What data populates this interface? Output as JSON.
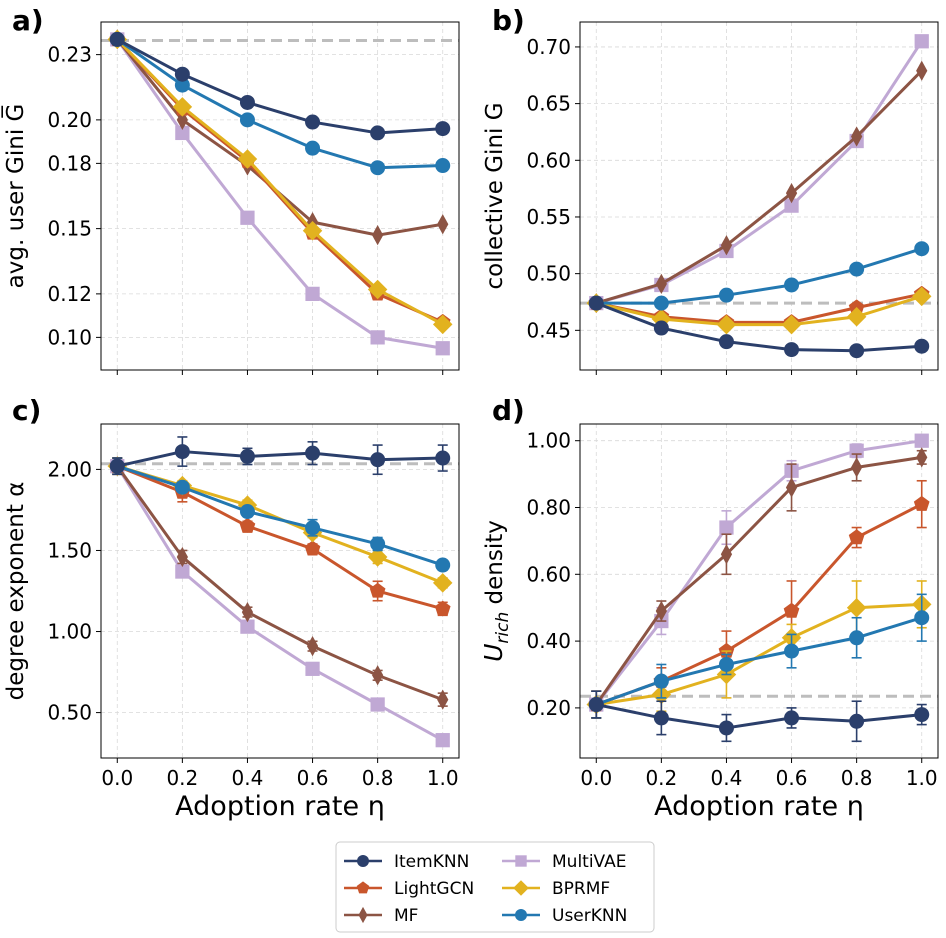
{
  "chart_data": [
    {
      "type": "line",
      "panel_label": "a)",
      "ylabel": "avg. user Gini G̅",
      "xlabel": "",
      "x": [
        0.0,
        0.2,
        0.4,
        0.6,
        0.8,
        1.0
      ],
      "xticks": [
        "",
        "",
        "",
        "",
        "",
        ""
      ],
      "ylim": [
        0.085,
        0.245
      ],
      "yticks": [
        0.1,
        0.12,
        0.15,
        0.18,
        0.2,
        0.23
      ],
      "ytick_labels": [
        "0.10",
        "0.12",
        "0.15",
        "0.18",
        "0.20",
        "0.23"
      ],
      "reference_line": 0.2365,
      "series": [
        {
          "name": "ItemKNN",
          "values": [
            0.237,
            0.221,
            0.208,
            0.199,
            0.194,
            0.196
          ]
        },
        {
          "name": "LightGCN",
          "values": [
            0.237,
            0.205,
            0.181,
            0.148,
            0.12,
            0.107
          ]
        },
        {
          "name": "MF",
          "values": [
            0.237,
            0.2,
            0.179,
            0.153,
            0.147,
            0.152
          ]
        },
        {
          "name": "MultiVAE",
          "values": [
            0.237,
            0.194,
            0.155,
            0.12,
            0.1,
            0.095
          ]
        },
        {
          "name": "BPRMF",
          "values": [
            0.237,
            0.206,
            0.182,
            0.149,
            0.122,
            0.106
          ]
        },
        {
          "name": "UserKNN",
          "values": [
            0.237,
            0.216,
            0.2,
            0.187,
            0.178,
            0.179
          ]
        }
      ]
    },
    {
      "type": "line",
      "panel_label": "b)",
      "ylabel": "collective Gini G",
      "xlabel": "",
      "x": [
        0.0,
        0.2,
        0.4,
        0.6,
        0.8,
        1.0
      ],
      "xticks": [
        "",
        "",
        "",
        "",
        "",
        ""
      ],
      "ylim": [
        0.415,
        0.722
      ],
      "yticks": [
        0.45,
        0.5,
        0.55,
        0.6,
        0.65,
        0.7
      ],
      "ytick_labels": [
        "0.45",
        "0.50",
        "0.55",
        "0.60",
        "0.65",
        "0.70"
      ],
      "reference_line": 0.474,
      "series": [
        {
          "name": "ItemKNN",
          "values": [
            0.474,
            0.452,
            0.44,
            0.433,
            0.432,
            0.436
          ]
        },
        {
          "name": "LightGCN",
          "values": [
            0.474,
            0.462,
            0.457,
            0.457,
            0.47,
            0.482
          ]
        },
        {
          "name": "MF",
          "values": [
            0.474,
            0.491,
            0.525,
            0.571,
            0.621,
            0.679
          ]
        },
        {
          "name": "MultiVAE",
          "values": [
            0.474,
            0.49,
            0.52,
            0.56,
            0.617,
            0.705
          ]
        },
        {
          "name": "BPRMF",
          "values": [
            0.474,
            0.46,
            0.455,
            0.455,
            0.462,
            0.48
          ]
        },
        {
          "name": "UserKNN",
          "values": [
            0.474,
            0.474,
            0.481,
            0.49,
            0.504,
            0.522
          ]
        }
      ]
    },
    {
      "type": "line",
      "panel_label": "c)",
      "ylabel": "degree exponent α",
      "xlabel": "Adoption rate η",
      "x": [
        0.0,
        0.2,
        0.4,
        0.6,
        0.8,
        1.0
      ],
      "xticks": [
        "0.0",
        "0.2",
        "0.4",
        "0.6",
        "0.8",
        "1.0"
      ],
      "ylim": [
        0.22,
        2.28
      ],
      "yticks": [
        0.5,
        1.0,
        1.5,
        2.0
      ],
      "ytick_labels": [
        "0.50",
        "1.00",
        "1.50",
        "2.00"
      ],
      "reference_line": 2.035,
      "series": [
        {
          "name": "ItemKNN",
          "values": [
            2.02,
            2.11,
            2.08,
            2.1,
            2.06,
            2.07
          ],
          "errors": [
            0.05,
            0.09,
            0.05,
            0.07,
            0.09,
            0.08
          ]
        },
        {
          "name": "LightGCN",
          "values": [
            2.02,
            1.86,
            1.65,
            1.51,
            1.25,
            1.14
          ],
          "errors": [
            0.05,
            0.06,
            0.03,
            0.03,
            0.06,
            0.04
          ]
        },
        {
          "name": "MF",
          "values": [
            2.02,
            1.46,
            1.12,
            0.91,
            0.73,
            0.58
          ],
          "errors": [
            0.05,
            0.04,
            0.03,
            0.03,
            0.03,
            0.04
          ]
        },
        {
          "name": "MultiVAE",
          "values": [
            2.02,
            1.37,
            1.03,
            0.77,
            0.55,
            0.33
          ],
          "errors": [
            0.05,
            0.03,
            0.02,
            0.02,
            0.02,
            0.02
          ]
        },
        {
          "name": "BPRMF",
          "values": [
            2.02,
            1.9,
            1.78,
            1.61,
            1.46,
            1.3
          ],
          "errors": [
            0.05,
            0.03,
            0.03,
            0.03,
            0.04,
            0.03
          ]
        },
        {
          "name": "UserKNN",
          "values": [
            2.02,
            1.89,
            1.74,
            1.64,
            1.54,
            1.41
          ],
          "errors": [
            0.05,
            0.03,
            0.03,
            0.05,
            0.04,
            0.03
          ]
        }
      ]
    },
    {
      "type": "line",
      "panel_label": "d)",
      "ylabel_main": "U",
      "ylabel_sub": "rich",
      "ylabel_rest": " density",
      "xlabel": "Adoption rate η",
      "x": [
        0.0,
        0.2,
        0.4,
        0.6,
        0.8,
        1.0
      ],
      "xticks": [
        "0.0",
        "0.2",
        "0.4",
        "0.6",
        "0.8",
        "1.0"
      ],
      "ylim": [
        0.05,
        1.05
      ],
      "yticks": [
        0.2,
        0.4,
        0.6,
        0.8,
        1.0
      ],
      "ytick_labels": [
        "0.20",
        "0.40",
        "0.60",
        "0.80",
        "1.00"
      ],
      "reference_line": 0.235,
      "series": [
        {
          "name": "ItemKNN",
          "values": [
            0.21,
            0.17,
            0.14,
            0.17,
            0.16,
            0.18
          ],
          "errors": [
            0.04,
            0.05,
            0.04,
            0.03,
            0.06,
            0.03
          ]
        },
        {
          "name": "LightGCN",
          "values": [
            0.21,
            0.28,
            0.37,
            0.49,
            0.71,
            0.81
          ],
          "errors": [
            0.04,
            0.04,
            0.06,
            0.09,
            0.03,
            0.07
          ]
        },
        {
          "name": "MF",
          "values": [
            0.21,
            0.49,
            0.66,
            0.86,
            0.92,
            0.95
          ],
          "errors": [
            0.04,
            0.03,
            0.06,
            0.07,
            0.04,
            0.02
          ]
        },
        {
          "name": "MultiVAE",
          "values": [
            0.21,
            0.46,
            0.74,
            0.91,
            0.97,
            1.0
          ],
          "errors": [
            0.04,
            0.04,
            0.05,
            0.03,
            0.02,
            0.01
          ]
        },
        {
          "name": "BPRMF",
          "values": [
            0.21,
            0.24,
            0.3,
            0.41,
            0.5,
            0.51
          ],
          "errors": [
            0.04,
            0.05,
            0.07,
            0.04,
            0.08,
            0.07
          ]
        },
        {
          "name": "UserKNN",
          "values": [
            0.21,
            0.28,
            0.33,
            0.37,
            0.41,
            0.47
          ],
          "errors": [
            0.04,
            0.05,
            0.03,
            0.05,
            0.06,
            0.07
          ]
        }
      ]
    }
  ],
  "legend": {
    "entries": [
      {
        "name": "ItemKNN",
        "color": "#2b3f6b",
        "marker": "circle"
      },
      {
        "name": "LightGCN",
        "color": "#c9562c",
        "marker": "pentagon"
      },
      {
        "name": "MF",
        "color": "#8c5444",
        "marker": "thin-diamond"
      },
      {
        "name": "MultiVAE",
        "color": "#c0a8d4",
        "marker": "square"
      },
      {
        "name": "BPRMF",
        "color": "#e2b21f",
        "marker": "diamond"
      },
      {
        "name": "UserKNN",
        "color": "#2378b1",
        "marker": "circle"
      }
    ],
    "placement": "bottom-center",
    "columns": 2
  },
  "colors": {
    "ItemKNN": "#2b3f6b",
    "LightGCN": "#c9562c",
    "MF": "#8c5444",
    "MultiVAE": "#c0a8d4",
    "BPRMF": "#e2b21f",
    "UserKNN": "#2378b1",
    "reference": "#bdbdbd",
    "grid": "#d9d9d9"
  },
  "draw_order": [
    "MultiVAE",
    "MF",
    "LightGCN",
    "BPRMF",
    "UserKNN",
    "ItemKNN"
  ]
}
